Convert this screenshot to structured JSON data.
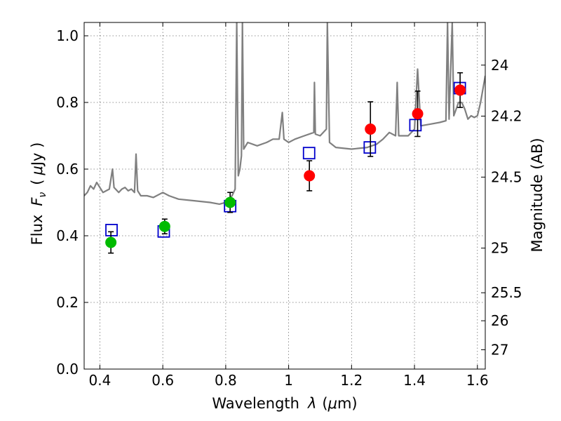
{
  "chart_data": {
    "type": "scatter",
    "xlabel_text": "Wavelength",
    "xlabel_symbol": "λ",
    "xlabel_unit_open": "(",
    "xlabel_unit_mu": "μ",
    "xlabel_unit_rest": "m)",
    "ylabel_text": "Flux",
    "ylabel_symbol": "F",
    "ylabel_sub": "ν",
    "ylabel_unit_open": "(",
    "ylabel_unit_mu": "μ",
    "ylabel_unit_rest": "Jy )",
    "y2label": "Magnitude (AB)",
    "xlim": [
      0.35,
      1.625
    ],
    "ylim": [
      0.0,
      1.04
    ],
    "grid": true,
    "xticks": [
      0.4,
      0.6,
      0.8,
      1.0,
      1.2,
      1.4,
      1.6
    ],
    "xtick_labels": [
      "0.4",
      "0.6",
      "0.8",
      "1",
      "1.2",
      "1.4",
      "1.6"
    ],
    "yticks": [
      0.0,
      0.2,
      0.4,
      0.6,
      0.8,
      1.0
    ],
    "ytick_labels": [
      "0.0",
      "0.2",
      "0.4",
      "0.6",
      "0.8",
      "1.0"
    ],
    "y2ticks": [
      {
        "label": "24",
        "flux": 0.912
      },
      {
        "label": "24.2",
        "flux": 0.759
      },
      {
        "label": "24.5",
        "flux": 0.576
      },
      {
        "label": "25",
        "flux": 0.363
      },
      {
        "label": "25.5",
        "flux": 0.229
      },
      {
        "label": "26",
        "flux": 0.145
      },
      {
        "label": "27",
        "flux": 0.058
      }
    ],
    "series": [
      {
        "marker": "circle",
        "color": "#00bb00",
        "points": [
          {
            "x": 0.435,
            "y": 0.38,
            "yerr": 0.032
          },
          {
            "x": 0.606,
            "y": 0.428,
            "yerr": 0.022
          },
          {
            "x": 0.814,
            "y": 0.5,
            "yerr": 0.03
          }
        ]
      },
      {
        "marker": "circle",
        "color": "#ff0000",
        "points": [
          {
            "x": 1.066,
            "y": 0.58,
            "yerr": 0.045
          },
          {
            "x": 1.26,
            "y": 0.72,
            "yerr": 0.082
          },
          {
            "x": 1.41,
            "y": 0.766,
            "yerr": 0.068
          },
          {
            "x": 1.545,
            "y": 0.837,
            "yerr": 0.052
          }
        ]
      },
      {
        "marker": "open-square",
        "color": "#0000cc",
        "points": [
          {
            "x": 0.437,
            "y": 0.417
          },
          {
            "x": 0.603,
            "y": 0.413
          },
          {
            "x": 0.814,
            "y": 0.489
          },
          {
            "x": 1.065,
            "y": 0.648
          },
          {
            "x": 1.258,
            "y": 0.665
          },
          {
            "x": 1.403,
            "y": 0.732
          },
          {
            "x": 1.544,
            "y": 0.843
          }
        ]
      },
      {
        "marker": "line",
        "color": "#808080",
        "points": [
          {
            "x": 0.35,
            "y": 0.52
          },
          {
            "x": 0.36,
            "y": 0.53
          },
          {
            "x": 0.37,
            "y": 0.55
          },
          {
            "x": 0.38,
            "y": 0.54
          },
          {
            "x": 0.39,
            "y": 0.56
          },
          {
            "x": 0.4,
            "y": 0.545
          },
          {
            "x": 0.41,
            "y": 0.53
          },
          {
            "x": 0.42,
            "y": 0.535
          },
          {
            "x": 0.43,
            "y": 0.54
          },
          {
            "x": 0.44,
            "y": 0.6
          },
          {
            "x": 0.445,
            "y": 0.545
          },
          {
            "x": 0.46,
            "y": 0.53
          },
          {
            "x": 0.47,
            "y": 0.54
          },
          {
            "x": 0.48,
            "y": 0.545
          },
          {
            "x": 0.49,
            "y": 0.535
          },
          {
            "x": 0.5,
            "y": 0.54
          },
          {
            "x": 0.51,
            "y": 0.53
          },
          {
            "x": 0.515,
            "y": 0.645
          },
          {
            "x": 0.52,
            "y": 0.535
          },
          {
            "x": 0.53,
            "y": 0.52
          },
          {
            "x": 0.55,
            "y": 0.52
          },
          {
            "x": 0.57,
            "y": 0.515
          },
          {
            "x": 0.6,
            "y": 0.53
          },
          {
            "x": 0.62,
            "y": 0.52
          },
          {
            "x": 0.65,
            "y": 0.51
          },
          {
            "x": 0.7,
            "y": 0.505
          },
          {
            "x": 0.75,
            "y": 0.5
          },
          {
            "x": 0.78,
            "y": 0.495
          },
          {
            "x": 0.8,
            "y": 0.5
          },
          {
            "x": 0.81,
            "y": 0.51
          },
          {
            "x": 0.82,
            "y": 0.52
          },
          {
            "x": 0.83,
            "y": 0.54
          },
          {
            "x": 0.835,
            "y": 1.04
          },
          {
            "x": 0.84,
            "y": 0.58
          },
          {
            "x": 0.845,
            "y": 0.6
          },
          {
            "x": 0.85,
            "y": 0.64
          },
          {
            "x": 0.853,
            "y": 1.04
          },
          {
            "x": 0.857,
            "y": 0.66
          },
          {
            "x": 0.87,
            "y": 0.68
          },
          {
            "x": 0.9,
            "y": 0.67
          },
          {
            "x": 0.93,
            "y": 0.68
          },
          {
            "x": 0.95,
            "y": 0.69
          },
          {
            "x": 0.97,
            "y": 0.69
          },
          {
            "x": 0.98,
            "y": 0.77
          },
          {
            "x": 0.985,
            "y": 0.69
          },
          {
            "x": 1.0,
            "y": 0.68
          },
          {
            "x": 1.02,
            "y": 0.69
          },
          {
            "x": 1.05,
            "y": 0.7
          },
          {
            "x": 1.08,
            "y": 0.71
          },
          {
            "x": 1.082,
            "y": 0.86
          },
          {
            "x": 1.085,
            "y": 0.705
          },
          {
            "x": 1.1,
            "y": 0.7
          },
          {
            "x": 1.12,
            "y": 0.72
          },
          {
            "x": 1.123,
            "y": 1.04
          },
          {
            "x": 1.13,
            "y": 0.68
          },
          {
            "x": 1.15,
            "y": 0.665
          },
          {
            "x": 1.2,
            "y": 0.66
          },
          {
            "x": 1.25,
            "y": 0.665
          },
          {
            "x": 1.28,
            "y": 0.675
          },
          {
            "x": 1.3,
            "y": 0.69
          },
          {
            "x": 1.32,
            "y": 0.71
          },
          {
            "x": 1.34,
            "y": 0.7
          },
          {
            "x": 1.345,
            "y": 0.86
          },
          {
            "x": 1.35,
            "y": 0.7
          },
          {
            "x": 1.38,
            "y": 0.7
          },
          {
            "x": 1.4,
            "y": 0.72
          },
          {
            "x": 1.41,
            "y": 0.9
          },
          {
            "x": 1.42,
            "y": 0.73
          },
          {
            "x": 1.45,
            "y": 0.735
          },
          {
            "x": 1.48,
            "y": 0.74
          },
          {
            "x": 1.5,
            "y": 0.745
          },
          {
            "x": 1.505,
            "y": 1.04
          },
          {
            "x": 1.51,
            "y": 0.75
          },
          {
            "x": 1.52,
            "y": 1.04
          },
          {
            "x": 1.525,
            "y": 0.76
          },
          {
            "x": 1.54,
            "y": 0.8
          },
          {
            "x": 1.55,
            "y": 0.8
          },
          {
            "x": 1.56,
            "y": 0.78
          },
          {
            "x": 1.57,
            "y": 0.75
          },
          {
            "x": 1.58,
            "y": 0.76
          },
          {
            "x": 1.59,
            "y": 0.755
          },
          {
            "x": 1.6,
            "y": 0.76
          },
          {
            "x": 1.61,
            "y": 0.8
          },
          {
            "x": 1.625,
            "y": 0.88
          }
        ]
      }
    ]
  }
}
